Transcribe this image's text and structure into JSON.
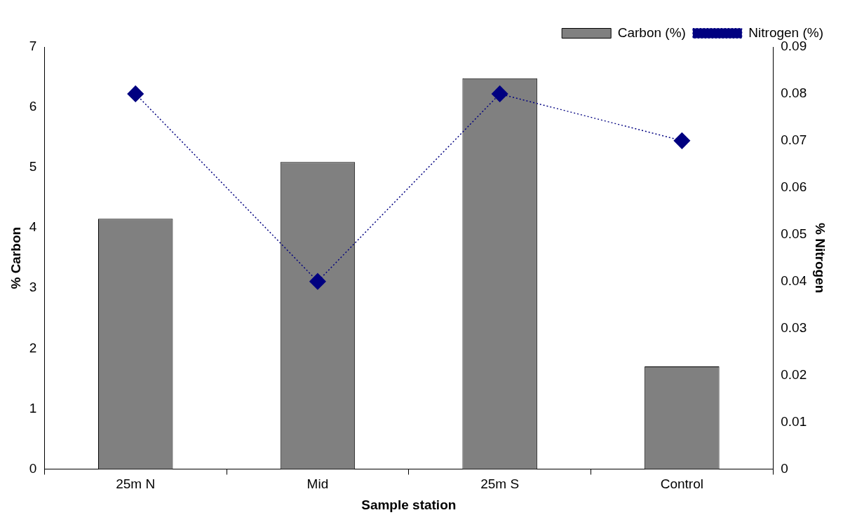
{
  "chart_data": {
    "type": "bar",
    "xlabel": "Sample station",
    "ylabel": "% Carbon",
    "y2label": "% Nitrogen",
    "categories": [
      "25m N",
      "Mid",
      "25m S",
      "Control"
    ],
    "series": [
      {
        "name": "Carbon (%)",
        "color": "#808080",
        "values": [
          4.15,
          5.09,
          6.48,
          1.7
        ]
      },
      {
        "name": "Nitrogen (%)",
        "type": "line",
        "axis": "y2",
        "color": "#000080",
        "marker": "diamond",
        "line_style": "dotted",
        "values": [
          0.08,
          0.04,
          0.08,
          0.07
        ]
      }
    ],
    "ylim": [
      0,
      7
    ],
    "yticks": [
      0,
      1,
      2,
      3,
      4,
      5,
      6,
      7
    ],
    "y2lim": [
      0,
      0.09
    ],
    "y2ticks": [
      0,
      0.01,
      0.02,
      0.03,
      0.04,
      0.05,
      0.06,
      0.07,
      0.08,
      0.09
    ],
    "grid": false,
    "legend": "top right"
  }
}
